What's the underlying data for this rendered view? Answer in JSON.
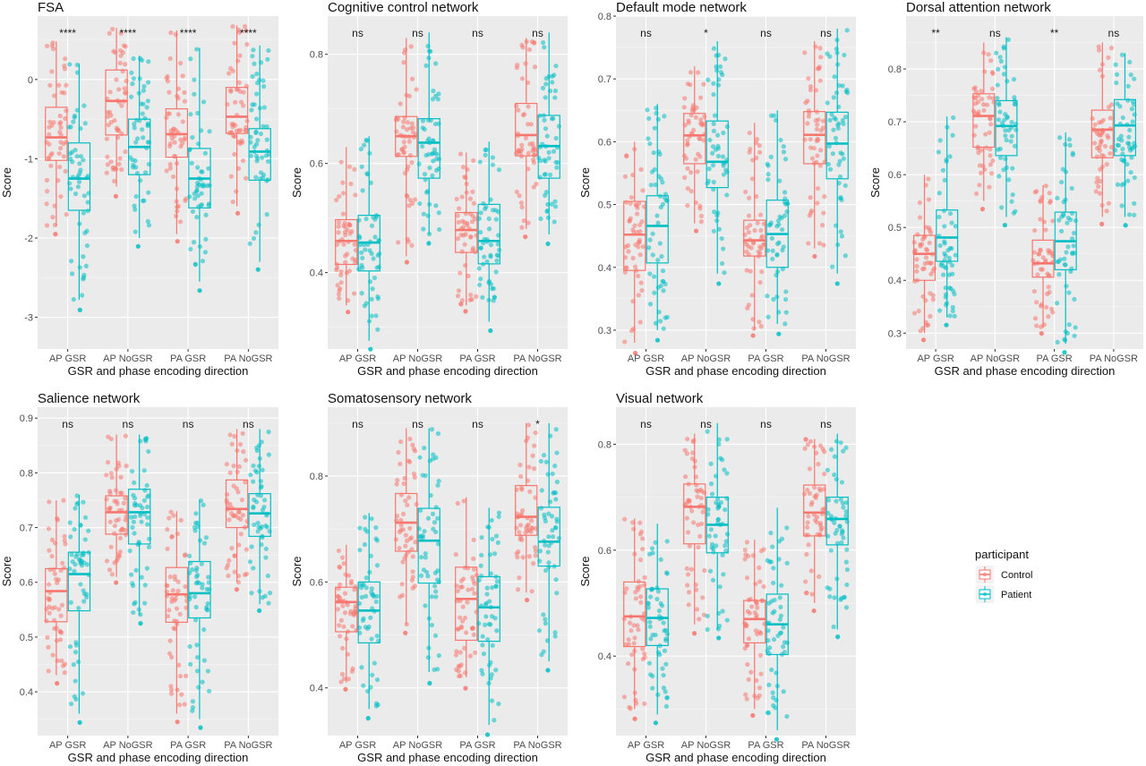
{
  "chart_data": {
    "type": "box",
    "groups": [
      "Control",
      "Patient"
    ],
    "colors": {
      "Control": "#f8766d",
      "Patient": "#00bfc4"
    },
    "legend": {
      "title": "participant",
      "entries": [
        "Control",
        "Patient"
      ],
      "position": "right"
    },
    "x_categories": [
      "AP GSR",
      "AP NoGSR",
      "PA GSR",
      "PA NoGSR"
    ],
    "xlabel": "GSR and phase encoding direction",
    "ylabel": "Score",
    "grid": true,
    "panels": [
      {
        "title": "FSA",
        "ylim": [
          -3.4,
          0.8
        ],
        "yticks": [
          -3,
          -2,
          -1,
          0
        ],
        "ytick_labels": [
          "-3",
          "-2",
          "-1",
          "0"
        ],
        "significance": [
          "****",
          "****",
          "****",
          "****"
        ],
        "boxes": [
          {
            "Control": {
              "min": -1.85,
              "q1": -1.02,
              "median": -0.73,
              "q3": -0.35,
              "max": 0.48
            },
            "Patient": {
              "min": -2.78,
              "q1": -1.65,
              "median": -1.25,
              "q3": -0.8,
              "max": 0.2
            }
          },
          {
            "Control": {
              "min": -1.35,
              "q1": -0.7,
              "median": -0.27,
              "q3": 0.12,
              "max": 0.65
            },
            "Patient": {
              "min": -2.0,
              "q1": -1.2,
              "median": -0.85,
              "q3": -0.5,
              "max": 0.3
            }
          },
          {
            "Control": {
              "min": -1.95,
              "q1": -0.98,
              "median": -0.69,
              "q3": -0.37,
              "max": 0.62
            },
            "Patient": {
              "min": -2.55,
              "q1": -1.62,
              "median": -1.25,
              "q3": -0.87,
              "max": 0.4
            }
          },
          {
            "Control": {
              "min": -1.6,
              "q1": -0.68,
              "median": -0.47,
              "q3": -0.1,
              "max": 0.68
            },
            "Patient": {
              "min": -2.3,
              "q1": -1.27,
              "median": -0.91,
              "q3": -0.62,
              "max": 0.43
            }
          }
        ]
      },
      {
        "title": "Cognitive control network",
        "ylim": [
          0.26,
          0.87
        ],
        "yticks": [
          0.4,
          0.6,
          0.8
        ],
        "ytick_labels": [
          "0.4",
          "0.6",
          "0.8"
        ],
        "significance": [
          "ns",
          "ns",
          "ns",
          "ns"
        ],
        "boxes": [
          {
            "Control": {
              "min": 0.34,
              "q1": 0.415,
              "median": 0.458,
              "q3": 0.497,
              "max": 0.63
            },
            "Patient": {
              "min": 0.275,
              "q1": 0.403,
              "median": 0.455,
              "q3": 0.505,
              "max": 0.65
            }
          },
          {
            "Control": {
              "min": 0.43,
              "q1": 0.613,
              "median": 0.65,
              "q3": 0.686,
              "max": 0.83
            },
            "Patient": {
              "min": 0.47,
              "q1": 0.573,
              "median": 0.638,
              "q3": 0.682,
              "max": 0.84
            }
          },
          {
            "Control": {
              "min": 0.34,
              "q1": 0.437,
              "median": 0.478,
              "q3": 0.51,
              "max": 0.62
            },
            "Patient": {
              "min": 0.31,
              "q1": 0.416,
              "median": 0.458,
              "q3": 0.525,
              "max": 0.64
            }
          },
          {
            "Control": {
              "min": 0.48,
              "q1": 0.614,
              "median": 0.652,
              "q3": 0.71,
              "max": 0.83
            },
            "Patient": {
              "min": 0.47,
              "q1": 0.573,
              "median": 0.632,
              "q3": 0.688,
              "max": 0.84
            }
          }
        ]
      },
      {
        "title": "Default mode network",
        "ylim": [
          0.27,
          0.8
        ],
        "yticks": [
          0.3,
          0.4,
          0.5,
          0.6,
          0.7,
          0.8
        ],
        "ytick_labels": [
          "0.3",
          "0.4",
          "0.5",
          "0.6",
          "0.7",
          "0.8"
        ],
        "significance": [
          "ns",
          "*",
          "ns",
          "ns"
        ],
        "boxes": [
          {
            "Control": {
              "min": 0.28,
              "q1": 0.395,
              "median": 0.452,
              "q3": 0.505,
              "max": 0.6
            },
            "Patient": {
              "min": 0.3,
              "q1": 0.407,
              "median": 0.466,
              "q3": 0.514,
              "max": 0.66
            }
          },
          {
            "Control": {
              "min": 0.47,
              "q1": 0.565,
              "median": 0.61,
              "q3": 0.645,
              "max": 0.72
            },
            "Patient": {
              "min": 0.39,
              "q1": 0.527,
              "median": 0.568,
              "q3": 0.633,
              "max": 0.76
            }
          },
          {
            "Control": {
              "min": 0.3,
              "q1": 0.418,
              "median": 0.443,
              "q3": 0.475,
              "max": 0.63
            },
            "Patient": {
              "min": 0.31,
              "q1": 0.4,
              "median": 0.453,
              "q3": 0.507,
              "max": 0.65
            }
          },
          {
            "Control": {
              "min": 0.43,
              "q1": 0.565,
              "median": 0.611,
              "q3": 0.648,
              "max": 0.76
            },
            "Patient": {
              "min": 0.39,
              "q1": 0.541,
              "median": 0.597,
              "q3": 0.647,
              "max": 0.78
            }
          }
        ]
      },
      {
        "title": "Dorsal attention network",
        "ylim": [
          0.27,
          0.9
        ],
        "yticks": [
          0.3,
          0.4,
          0.5,
          0.6,
          0.7,
          0.8
        ],
        "ytick_labels": [
          "0.3",
          "0.4",
          "0.5",
          "0.6",
          "0.7",
          "0.8"
        ],
        "significance": [
          "**",
          "ns",
          "**",
          "ns"
        ],
        "boxes": [
          {
            "Control": {
              "min": 0.3,
              "q1": 0.4,
              "median": 0.45,
              "q3": 0.485,
              "max": 0.6
            },
            "Patient": {
              "min": 0.33,
              "q1": 0.436,
              "median": 0.481,
              "q3": 0.533,
              "max": 0.71
            }
          },
          {
            "Control": {
              "min": 0.55,
              "q1": 0.652,
              "median": 0.711,
              "q3": 0.753,
              "max": 0.85
            },
            "Patient": {
              "min": 0.52,
              "q1": 0.636,
              "median": 0.692,
              "q3": 0.74,
              "max": 0.86
            }
          },
          {
            "Control": {
              "min": 0.31,
              "q1": 0.406,
              "median": 0.432,
              "q3": 0.476,
              "max": 0.58
            },
            "Patient": {
              "min": 0.28,
              "q1": 0.42,
              "median": 0.474,
              "q3": 0.529,
              "max": 0.68
            }
          },
          {
            "Control": {
              "min": 0.52,
              "q1": 0.632,
              "median": 0.685,
              "q3": 0.722,
              "max": 0.85
            },
            "Patient": {
              "min": 0.52,
              "q1": 0.636,
              "median": 0.693,
              "q3": 0.742,
              "max": 0.83
            }
          }
        ]
      },
      {
        "title": "Salience network",
        "ylim": [
          0.32,
          0.92
        ],
        "yticks": [
          0.4,
          0.5,
          0.6,
          0.7,
          0.8,
          0.9
        ],
        "ytick_labels": [
          "0.4",
          "0.5",
          "0.6",
          "0.7",
          "0.8",
          "0.9"
        ],
        "significance": [
          "ns",
          "ns",
          "ns",
          "ns"
        ],
        "boxes": [
          {
            "Control": {
              "min": 0.43,
              "q1": 0.528,
              "median": 0.584,
              "q3": 0.625,
              "max": 0.75
            },
            "Patient": {
              "min": 0.36,
              "q1": 0.548,
              "median": 0.615,
              "q3": 0.655,
              "max": 0.76
            }
          },
          {
            "Control": {
              "min": 0.61,
              "q1": 0.688,
              "median": 0.728,
              "q3": 0.758,
              "max": 0.87
            },
            "Patient": {
              "min": 0.54,
              "q1": 0.67,
              "median": 0.728,
              "q3": 0.77,
              "max": 0.87
            }
          },
          {
            "Control": {
              "min": 0.36,
              "q1": 0.527,
              "median": 0.578,
              "q3": 0.627,
              "max": 0.73
            },
            "Patient": {
              "min": 0.35,
              "q1": 0.535,
              "median": 0.58,
              "q3": 0.638,
              "max": 0.75
            }
          },
          {
            "Control": {
              "min": 0.6,
              "q1": 0.7,
              "median": 0.734,
              "q3": 0.787,
              "max": 0.88
            },
            "Patient": {
              "min": 0.56,
              "q1": 0.684,
              "median": 0.726,
              "q3": 0.762,
              "max": 0.88
            }
          }
        ]
      },
      {
        "title": "Somatosensory network",
        "ylim": [
          0.31,
          0.93
        ],
        "yticks": [
          0.4,
          0.6,
          0.8
        ],
        "ytick_labels": [
          "0.4",
          "0.6",
          "0.8"
        ],
        "significance": [
          "ns",
          "ns",
          "ns",
          "*"
        ],
        "boxes": [
          {
            "Control": {
              "min": 0.41,
              "q1": 0.506,
              "median": 0.562,
              "q3": 0.59,
              "max": 0.67
            },
            "Patient": {
              "min": 0.36,
              "q1": 0.485,
              "median": 0.546,
              "q3": 0.6,
              "max": 0.73
            }
          },
          {
            "Control": {
              "min": 0.52,
              "q1": 0.658,
              "median": 0.712,
              "q3": 0.767,
              "max": 0.89
            },
            "Patient": {
              "min": 0.43,
              "q1": 0.598,
              "median": 0.678,
              "q3": 0.739,
              "max": 0.89
            }
          },
          {
            "Control": {
              "min": 0.42,
              "q1": 0.49,
              "median": 0.568,
              "q3": 0.628,
              "max": 0.76
            },
            "Patient": {
              "min": 0.33,
              "q1": 0.488,
              "median": 0.552,
              "q3": 0.61,
              "max": 0.74
            }
          },
          {
            "Control": {
              "min": 0.58,
              "q1": 0.688,
              "median": 0.723,
              "q3": 0.782,
              "max": 0.9
            },
            "Patient": {
              "min": 0.45,
              "q1": 0.63,
              "median": 0.676,
              "q3": 0.741,
              "max": 0.9
            }
          }
        ]
      },
      {
        "title": "Visual network",
        "ylim": [
          0.25,
          0.87
        ],
        "yticks": [
          0.4,
          0.6,
          0.8
        ],
        "ytick_labels": [
          "0.4",
          "0.6",
          "0.8"
        ],
        "significance": [
          "ns",
          "ns",
          "ns",
          "ns"
        ],
        "boxes": [
          {
            "Control": {
              "min": 0.3,
              "q1": 0.418,
              "median": 0.475,
              "q3": 0.54,
              "max": 0.66
            },
            "Patient": {
              "min": 0.29,
              "q1": 0.42,
              "median": 0.472,
              "q3": 0.527,
              "max": 0.65
            }
          },
          {
            "Control": {
              "min": 0.46,
              "q1": 0.612,
              "median": 0.682,
              "q3": 0.725,
              "max": 0.82
            },
            "Patient": {
              "min": 0.45,
              "q1": 0.595,
              "median": 0.648,
              "q3": 0.7,
              "max": 0.84
            }
          },
          {
            "Control": {
              "min": 0.3,
              "q1": 0.425,
              "median": 0.47,
              "q3": 0.505,
              "max": 0.62
            },
            "Patient": {
              "min": 0.26,
              "q1": 0.403,
              "median": 0.46,
              "q3": 0.517,
              "max": 0.68
            }
          },
          {
            "Control": {
              "min": 0.5,
              "q1": 0.627,
              "median": 0.671,
              "q3": 0.723,
              "max": 0.81
            },
            "Patient": {
              "min": 0.45,
              "q1": 0.61,
              "median": 0.659,
              "q3": 0.7,
              "max": 0.82
            }
          }
        ]
      }
    ]
  }
}
